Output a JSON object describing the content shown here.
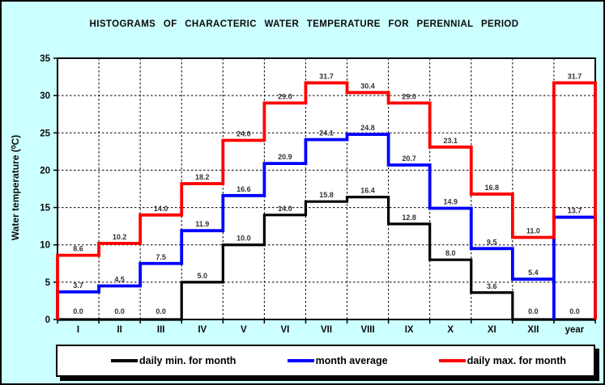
{
  "window": {
    "bg_color": "#CCFFFF",
    "plot_bg_color": "#FFFFFF",
    "border_color": "#000000"
  },
  "title": "HISTOGRAMS  OF  CHARACTERIC  WATER  TEMPERATURE  FOR  PERENNIAL  PERIOD",
  "y_axis_title": "Water temperature (⁰C)",
  "value_label_color": "#333333",
  "legend": {
    "items": [
      {
        "label": "daily min. for month",
        "color": "#000000"
      },
      {
        "label": "month average",
        "color": "#0000FF"
      },
      {
        "label": "daily max. for month",
        "color": "#FF0000"
      }
    ]
  },
  "chart_data": {
    "type": "line",
    "step": true,
    "title": "HISTOGRAMS OF CHARACTERIC WATER TEMPERATURE FOR PERENNIAL PERIOD",
    "xlabel": "",
    "ylabel": "Water temperature (⁰C)",
    "categories": [
      "I",
      "II",
      "III",
      "IV",
      "V",
      "VI",
      "VII",
      "VIII",
      "IX",
      "X",
      "XI",
      "XII",
      "year"
    ],
    "series": [
      {
        "name": "daily min. for month",
        "color": "#000000",
        "values": [
          0.0,
          0.0,
          0.0,
          5.0,
          10.0,
          14.0,
          15.8,
          16.4,
          12.8,
          8.0,
          3.6,
          0.0,
          0.0
        ]
      },
      {
        "name": "month average",
        "color": "#0000FF",
        "rise_from_zero_at_last": true,
        "values": [
          3.7,
          4.5,
          7.5,
          11.9,
          16.6,
          20.9,
          24.1,
          24.8,
          20.7,
          14.9,
          9.5,
          5.4,
          13.7
        ]
      },
      {
        "name": "daily max. for month",
        "color": "#FF0000",
        "values": [
          8.6,
          10.2,
          14.0,
          18.2,
          24.0,
          29.0,
          31.7,
          30.4,
          29.0,
          23.1,
          16.8,
          11.0,
          31.7
        ]
      }
    ],
    "ylim": [
      0,
      35
    ],
    "ytick_step": 5,
    "yticks": [
      "0",
      "5",
      "10",
      "15",
      "20",
      "25",
      "30",
      "35"
    ],
    "grid": true,
    "grid_style": "dashed",
    "data_labels": true,
    "legend_position": "bottom"
  }
}
